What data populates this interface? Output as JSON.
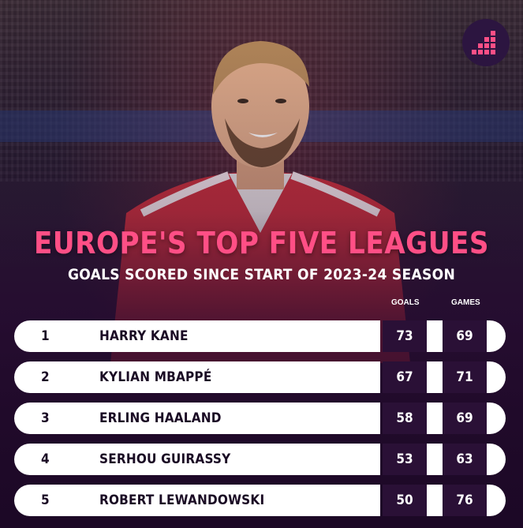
{
  "title": "EUROPE'S TOP FIVE LEAGUES",
  "subtitle": "GOALS SCORED SINCE START OF 2023-24 SEASON",
  "columns": {
    "goals": "GOALS",
    "games": "GAMES"
  },
  "players": [
    {
      "rank": "1",
      "name": "HARRY KANE",
      "goals": "73",
      "games": "69"
    },
    {
      "rank": "2",
      "name": "KYLIAN MBAPPÉ",
      "goals": "67",
      "games": "71"
    },
    {
      "rank": "3",
      "name": "ERLING HAALAND",
      "goals": "58",
      "games": "69"
    },
    {
      "rank": "4",
      "name": "SERHOU GUIRASSY",
      "goals": "53",
      "games": "63"
    },
    {
      "rank": "5",
      "name": "ROBERT LEWANDOWSKI",
      "goals": "50",
      "games": "76"
    }
  ],
  "colors": {
    "title_pink": "#ff4f86",
    "cell_dark": "#2a1036",
    "bar_white": "#ffffff"
  },
  "icons": {
    "logo": "ranking-bars-logo-icon"
  }
}
